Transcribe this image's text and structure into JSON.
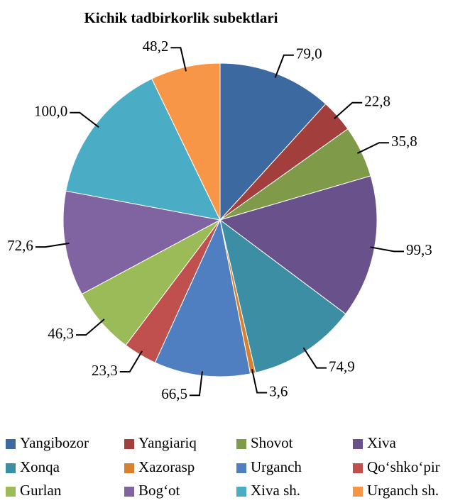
{
  "chart_data": {
    "type": "pie",
    "title": "Kichik tadbirkorlik subektlari",
    "categories": [
      "Yangibozor",
      "Yangiariq",
      "Shovot",
      "Xiva",
      "Xonqa",
      "Xazorasp",
      "Urganch",
      "Qo‘shko‘pir",
      "Gurlan",
      "Bog‘ot",
      "Xiva sh.",
      "Urganch sh."
    ],
    "values": [
      79.0,
      22.8,
      35.8,
      99.3,
      74.9,
      3.6,
      66.5,
      23.3,
      46.3,
      72.6,
      100.0,
      48.2
    ],
    "value_labels": [
      "79,0",
      "22,8",
      "35,8",
      "99,3",
      "74,9",
      "3,6",
      "66,5",
      "23,3",
      "46,3",
      "72,6",
      "100,0",
      "48,2"
    ],
    "colors": [
      "#3c69a0",
      "#a23f3c",
      "#7f9a48",
      "#69518b",
      "#3b8ea3",
      "#d9802f",
      "#4f7fc0",
      "#c0504d",
      "#9bbb59",
      "#8064a2",
      "#4bacc6",
      "#f79646"
    ],
    "legend": "bottom"
  }
}
